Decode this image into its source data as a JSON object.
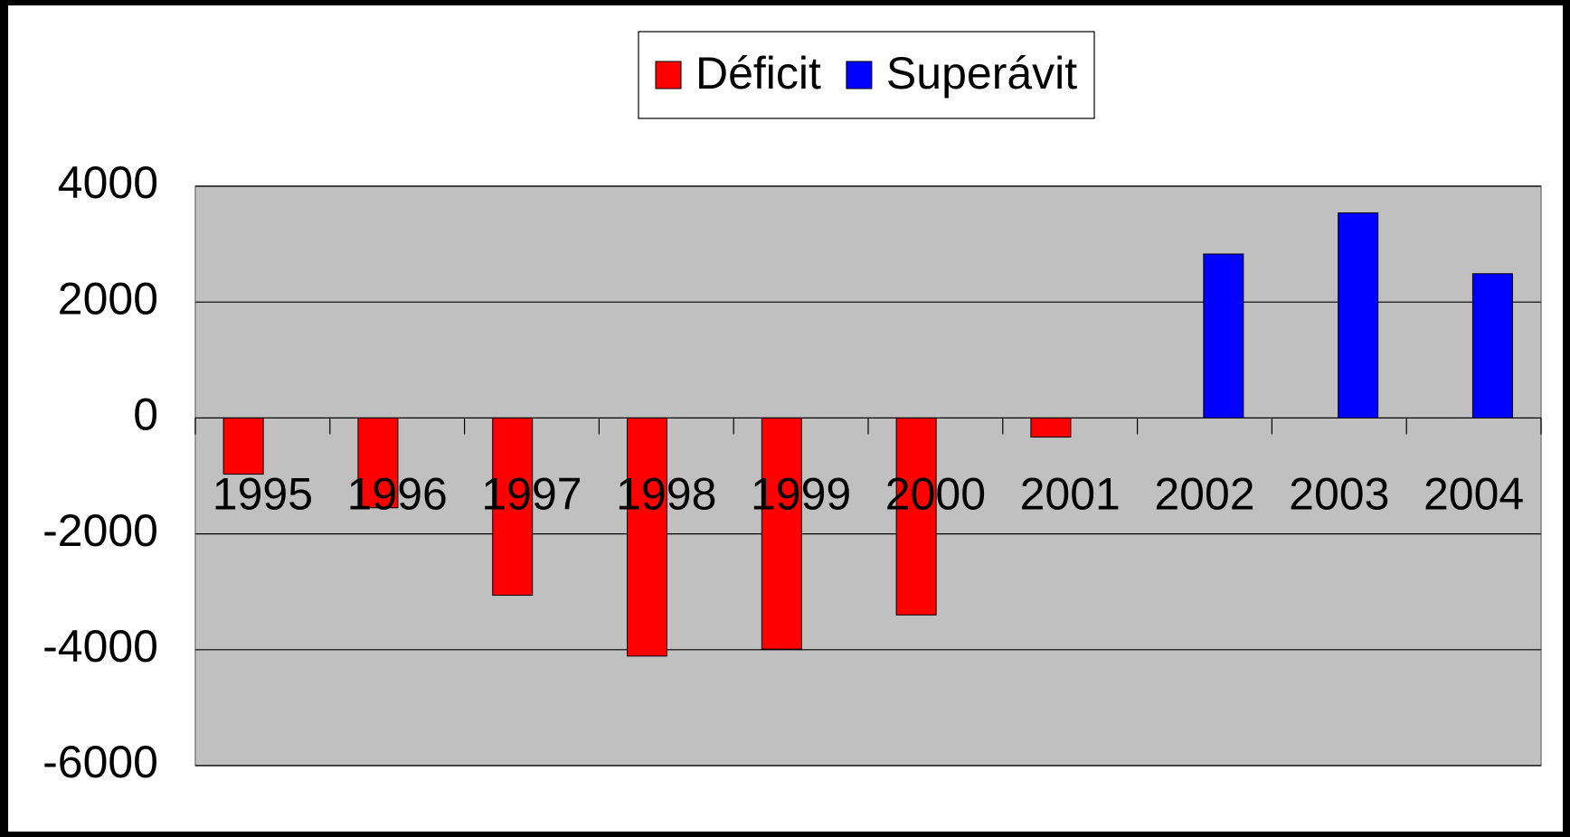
{
  "chart_data": {
    "type": "bar",
    "categories": [
      "1995",
      "1996",
      "1997",
      "1998",
      "1999",
      "2000",
      "2001",
      "2002",
      "2003",
      "2004"
    ],
    "series": [
      {
        "name": "Déficit",
        "color": "#ff0000",
        "values": [
          -970,
          -1550,
          -3060,
          -4110,
          -3990,
          -3400,
          -330,
          null,
          null,
          null
        ]
      },
      {
        "name": "Superávit",
        "color": "#0000ff",
        "values": [
          null,
          null,
          null,
          null,
          null,
          null,
          null,
          2830,
          3540,
          2490
        ]
      }
    ],
    "ylim": [
      -6000,
      4000
    ],
    "yticks": [
      -6000,
      -4000,
      -2000,
      0,
      2000,
      4000
    ],
    "grid": true,
    "plot_background": "#c0c0c0"
  }
}
